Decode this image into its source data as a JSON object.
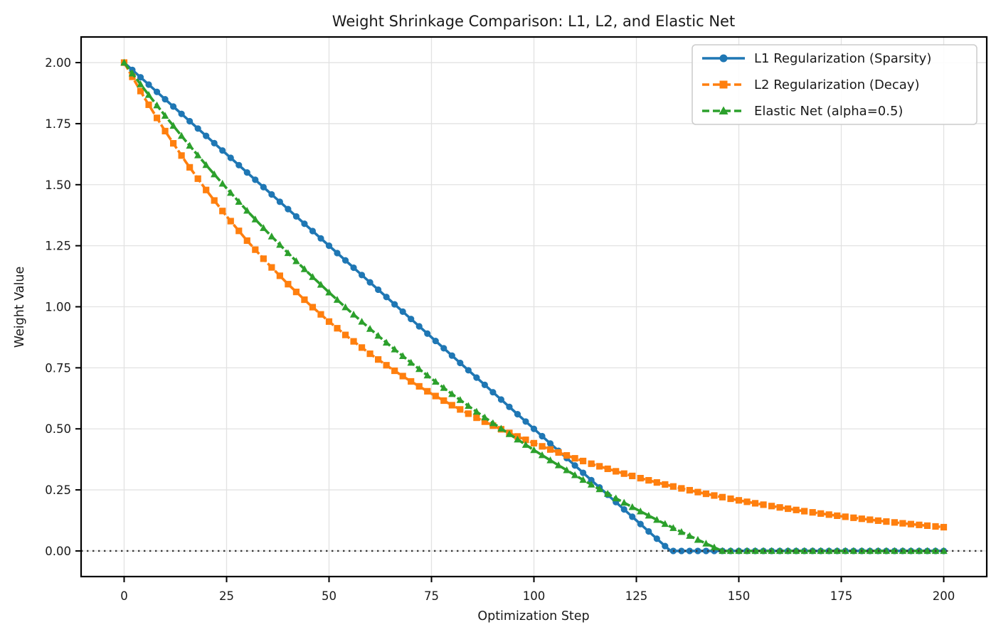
{
  "figure": {
    "background": "#ffffff",
    "text_color": "#1a1a1a",
    "spine_color": "#000000",
    "grid_color": "#e2e2e2"
  },
  "chart_data": {
    "type": "line",
    "title": "Weight Shrinkage Comparison: L1, L2, and Elastic Net",
    "xlabel": "Optimization Step",
    "ylabel": "Weight Value",
    "xlim": [
      -10.5,
      210.5
    ],
    "ylim": [
      -0.105,
      2.105
    ],
    "xticks": [
      0,
      25,
      50,
      75,
      100,
      125,
      150,
      175,
      200
    ],
    "xtick_labels": [
      "0",
      "25",
      "50",
      "75",
      "100",
      "125",
      "150",
      "175",
      "200"
    ],
    "yticks": [
      0,
      0.25,
      0.5,
      0.75,
      1.0,
      1.25,
      1.5,
      1.75,
      2.0
    ],
    "ytick_labels": [
      "0.00",
      "0.25",
      "0.50",
      "0.75",
      "1.00",
      "1.25",
      "1.50",
      "1.75",
      "2.00"
    ],
    "grid": true,
    "legend_position": "upper right",
    "marker_interval": 2,
    "zero_line": {
      "y": 0,
      "color": "#3a3a3a",
      "linestyle": "dotted"
    },
    "series": [
      {
        "name": "L1 Regularization (Sparsity)",
        "color": "#1f77b4",
        "marker": "circle",
        "linestyle": "solid",
        "x": [
          0,
          5,
          10,
          15,
          20,
          25,
          30,
          35,
          40,
          45,
          50,
          55,
          60,
          65,
          70,
          75,
          80,
          85,
          90,
          95,
          100,
          105,
          110,
          115,
          120,
          125,
          130,
          133.33,
          135,
          140,
          145,
          150,
          155,
          160,
          165,
          170,
          175,
          180,
          185,
          190,
          195,
          200
        ],
        "y": [
          2.0,
          1.925,
          1.85,
          1.775,
          1.7,
          1.625,
          1.55,
          1.475,
          1.4,
          1.325,
          1.25,
          1.175,
          1.1,
          1.025,
          0.95,
          0.875,
          0.8,
          0.725,
          0.65,
          0.575,
          0.5,
          0.425,
          0.35,
          0.275,
          0.2,
          0.125,
          0.05,
          0,
          0,
          0,
          0,
          0,
          0,
          0,
          0,
          0,
          0,
          0,
          0,
          0,
          0,
          0
        ]
      },
      {
        "name": "L2 Regularization (Decay)",
        "color": "#ff7f0e",
        "marker": "square",
        "linestyle": "dashed",
        "x": [
          0,
          5,
          10,
          15,
          20,
          25,
          30,
          35,
          40,
          45,
          50,
          55,
          60,
          65,
          70,
          75,
          80,
          85,
          90,
          95,
          100,
          105,
          110,
          115,
          120,
          125,
          130,
          135,
          140,
          145,
          150,
          155,
          160,
          165,
          170,
          175,
          180,
          185,
          190,
          195,
          200
        ],
        "y": [
          2.0,
          1.8544,
          1.7195,
          1.5943,
          1.4783,
          1.3707,
          1.2709,
          1.1784,
          1.0926,
          1.0131,
          0.9394,
          0.871,
          0.8076,
          0.7488,
          0.6943,
          0.6438,
          0.5969,
          0.5535,
          0.5132,
          0.4759,
          0.4412,
          0.4091,
          0.3793,
          0.3517,
          0.3261,
          0.3024,
          0.2804,
          0.26,
          0.241,
          0.2235,
          0.2072,
          0.1922,
          0.1782,
          0.1652,
          0.1532,
          0.142,
          0.1317,
          0.1221,
          0.1132,
          0.105,
          0.0973
        ]
      },
      {
        "name": "Elastic Net (alpha=0.5)",
        "color": "#2ca02c",
        "marker": "triangle",
        "linestyle": "dashed",
        "x": [
          0,
          5,
          10,
          15,
          20,
          25,
          30,
          35,
          40,
          45,
          50,
          55,
          60,
          65,
          70,
          75,
          80,
          85,
          90,
          95,
          100,
          105,
          110,
          115,
          120,
          125,
          130,
          135,
          140,
          145,
          146,
          150,
          155,
          160,
          165,
          170,
          175,
          180,
          185,
          190,
          195,
          200
        ],
        "y": [
          2.0,
          1.8892,
          1.7824,
          1.6797,
          1.5807,
          1.4853,
          1.3935,
          1.3051,
          1.2199,
          1.1379,
          1.0589,
          0.9829,
          0.9096,
          0.8391,
          0.7711,
          0.7057,
          0.6427,
          0.582,
          0.5236,
          0.4673,
          0.4131,
          0.3609,
          0.3106,
          0.2622,
          0.2156,
          0.1707,
          0.1274,
          0.0858,
          0.0457,
          0.007,
          0,
          0,
          0,
          0,
          0,
          0,
          0,
          0,
          0,
          0,
          0,
          0
        ]
      }
    ]
  }
}
